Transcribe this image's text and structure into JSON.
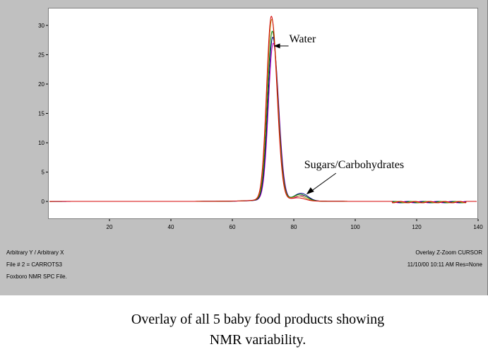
{
  "chart_data": {
    "type": "line",
    "title": "",
    "xlabel": "",
    "ylabel": "",
    "xlim": [
      0,
      140
    ],
    "ylim": [
      -3,
      33
    ],
    "xticks": [
      "20",
      "40",
      "60",
      "80",
      "100",
      "120",
      "140"
    ],
    "yticks": [
      "0",
      "5",
      "10",
      "15",
      "20",
      "25",
      "30"
    ],
    "grid": false,
    "series": [
      {
        "color": "#d40000",
        "peak": 31,
        "sugar": 0.5
      },
      {
        "color": "#b8860b",
        "peak": 30.5,
        "sugar": 0.8
      },
      {
        "color": "#008000",
        "peak": 28.5,
        "sugar": 1.1
      },
      {
        "color": "#000080",
        "peak": 27.5,
        "sugar": 1.3
      },
      {
        "color": "#c000c0",
        "peak": 26.5,
        "sugar": 0.9
      }
    ],
    "annotations": [
      {
        "text": "Water",
        "x": 73,
        "y": 26.5
      },
      {
        "text": "Sugars/Carbohydrates",
        "x": 85,
        "y": 1.2
      }
    ]
  },
  "info_left": [
    "Arbitrary Y / Arbitrary X",
    "File # 2 = CARROTS3",
    "Foxboro NMR SPC File."
  ],
  "info_right": [
    "Overlay Z-Zoom CURSOR",
    "11/10/00  10:11 AM  Res=None"
  ],
  "caption_line1": "Overlay of all 5 baby food products showing",
  "caption_line2": "NMR variability."
}
